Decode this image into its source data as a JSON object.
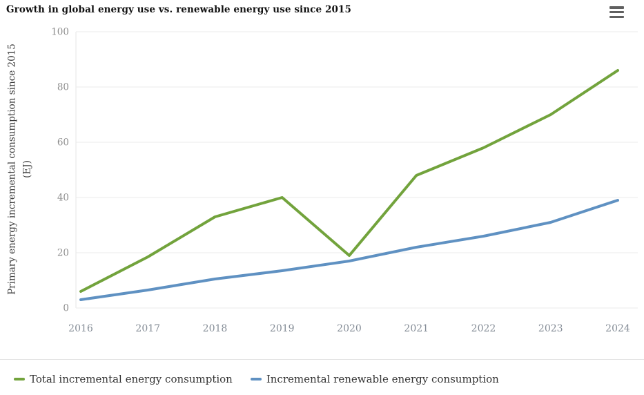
{
  "header": {
    "title": "Growth in global energy use vs. renewable energy use since 2015"
  },
  "y_axis": {
    "title_line1": "Primary energy incremental consumption since 2015",
    "title_line2": "(EJ)"
  },
  "legend": {
    "items": [
      {
        "label": "Total incremental energy consumption",
        "color": "#72a33c"
      },
      {
        "label": "Incremental renewable energy consumption",
        "color": "#5f91c2"
      }
    ]
  },
  "colors": {
    "grid": "#ebebeb",
    "axis_border": "#e6e6e6",
    "y_tick_label": "#8d8d8d",
    "x_tick_label": "#848c96",
    "title_text": "#111111",
    "menu_icon": "#606060",
    "divider": "#e2e2e2"
  },
  "chart_data": {
    "type": "line",
    "title": "Growth in global energy use vs. renewable energy use since 2015",
    "x": [
      2016,
      2017,
      2018,
      2019,
      2020,
      2021,
      2022,
      2023,
      2024
    ],
    "series": [
      {
        "name": "Total incremental energy consumption",
        "color": "#72a33c",
        "values": [
          6,
          18.5,
          33,
          40,
          19,
          48,
          58,
          70,
          86
        ]
      },
      {
        "name": "Incremental renewable energy consumption",
        "color": "#5f91c2",
        "values": [
          3,
          6.5,
          10.5,
          13.5,
          17,
          22,
          26,
          31,
          39
        ]
      }
    ],
    "xlabel": "",
    "ylabel": "Primary energy incremental consumption since 2015 (EJ)",
    "ylim": [
      0,
      100
    ],
    "yticks": [
      0,
      20,
      40,
      60,
      80,
      100
    ],
    "grid": "horizontal",
    "legend_position": "bottom"
  }
}
